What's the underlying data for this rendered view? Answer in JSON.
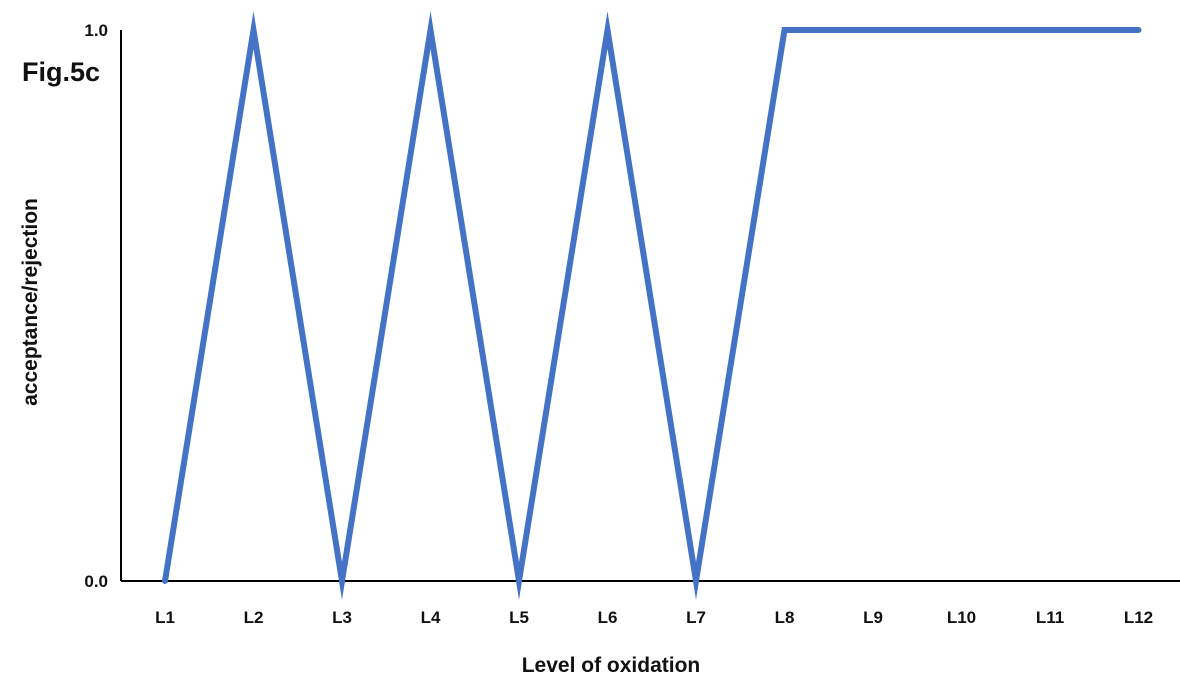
{
  "figure_label": "Fig.5c",
  "chart_data": {
    "type": "line",
    "title": "",
    "xlabel": "Level of oxidation",
    "ylabel": "acceptance/rejection",
    "categories": [
      "L1",
      "L2",
      "L3",
      "L4",
      "L5",
      "L6",
      "L7",
      "L8",
      "L9",
      "L10",
      "L11",
      "L12"
    ],
    "series": [
      {
        "values": [
          0,
          1,
          0,
          1,
          0,
          1,
          0,
          1,
          1,
          1,
          1,
          1
        ],
        "color": "#4472C4"
      }
    ],
    "y_ticks": [
      "0.0",
      "1.0"
    ],
    "ylim": [
      0,
      1
    ],
    "grid": false,
    "legend": "none"
  }
}
